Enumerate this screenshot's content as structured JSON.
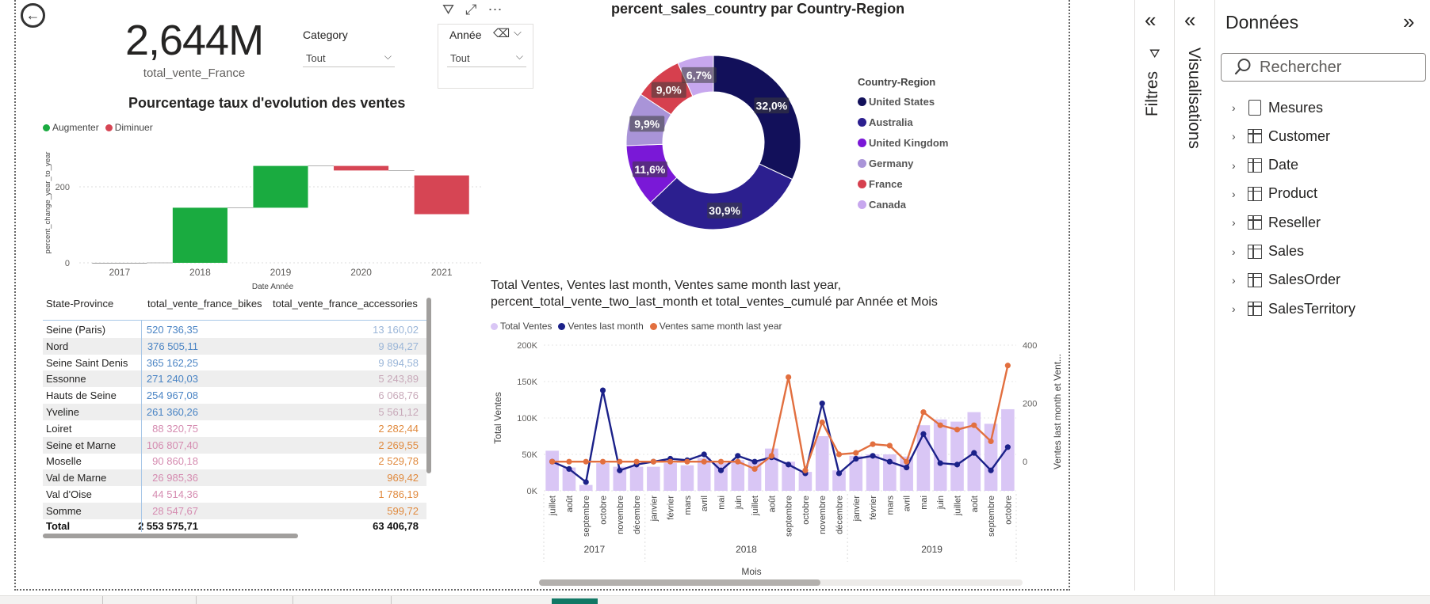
{
  "kpi": {
    "value": "2,644M",
    "label": "total_vente_France"
  },
  "slicers": {
    "category": {
      "title": "Category",
      "value": "Tout"
    },
    "year": {
      "title": "Année",
      "value": "Tout"
    }
  },
  "waterfall": {
    "title": "Pourcentage taux d'evolution des ventes",
    "legend": [
      {
        "label": "Augmenter",
        "color": "#1aab40"
      },
      {
        "label": "Diminuer",
        "color": "#d64554"
      }
    ],
    "ylabel": "percent_change_year_to_year",
    "xlabel": "Date Année",
    "y_ticks": [
      "200",
      "0"
    ],
    "ylim": [
      0,
      275
    ]
  },
  "table": {
    "headers": [
      "State-Province",
      "total_vente_france_bikes",
      "total_vente_france_accessories"
    ],
    "rows": [
      [
        "Seine (Paris)",
        "520 736,35",
        "13 160,02"
      ],
      [
        "Nord",
        "376 505,11",
        "9 894,27"
      ],
      [
        "Seine Saint Denis",
        "365 162,25",
        "9 894,58"
      ],
      [
        "Essonne",
        "271 240,03",
        "5 243,89"
      ],
      [
        "Hauts de Seine",
        "254 967,08",
        "6 068,76"
      ],
      [
        "Yveline",
        "261 360,26",
        "5 561,12"
      ],
      [
        "Loiret",
        "88 320,75",
        "2 282,44"
      ],
      [
        "Seine et Marne",
        "106 807,40",
        "2 269,55"
      ],
      [
        "Moselle",
        "90 860,18",
        "2 529,78"
      ],
      [
        "Val de Marne",
        "26 985,36",
        "969,42"
      ],
      [
        "Val d'Oise",
        "44 514,36",
        "1 786,19"
      ],
      [
        "Somme",
        "28 547,67",
        "599,72"
      ]
    ],
    "total": [
      "Total",
      "2 553 575,71",
      "63 406,78"
    ]
  },
  "donut": {
    "title": "percent_sales_country par Country-Region",
    "legend_title": "Country-Region"
  },
  "combo": {
    "title_line1": "Total Ventes, Ventes last month, Ventes same month last year,",
    "title_line2": "percent_total_vente_two_last_month et total_ventes_cumulé par Année et Mois",
    "legend": [
      {
        "label": "Total Ventes",
        "color": "#d9c6f5"
      },
      {
        "label": "Ventes last month",
        "color": "#1b2189"
      },
      {
        "label": "Ventes same month last year",
        "color": "#e26f3f"
      }
    ],
    "ylabel_left": "Total Ventes",
    "ylabel_right": "Ventes last month et Vent...",
    "xlabel": "Mois",
    "y_ticks_left": [
      "200K",
      "150K",
      "100K",
      "50K",
      "0K"
    ],
    "y_ticks_right": [
      "400",
      "200",
      "0"
    ]
  },
  "panes": {
    "filters_label": "Filtres",
    "visualisations_label": "Visualisations",
    "data_title": "Données",
    "search_placeholder": "Rechercher",
    "tree": [
      "Mesures",
      "Customer",
      "Date",
      "Product",
      "Reseller",
      "Sales",
      "SalesOrder",
      "SalesTerritory"
    ]
  },
  "chart_data": [
    {
      "type": "waterfall",
      "title": "Pourcentage taux d'evolution des ventes",
      "xlabel": "Date Année",
      "ylabel": "percent_change_year_to_year",
      "categories": [
        "2017",
        "2018",
        "2019",
        "2020",
        "2021"
      ],
      "start": [
        0,
        0,
        145,
        255,
        230
      ],
      "end": [
        0,
        145,
        255,
        243,
        128
      ],
      "direction": [
        "none",
        "up",
        "up",
        "down",
        "down"
      ],
      "ylim": [
        0,
        275
      ],
      "legend_position": "top-left"
    },
    {
      "type": "pie",
      "title": "percent_sales_country par Country-Region",
      "legend_title": "Country-Region",
      "categories": [
        "United States",
        "Australia",
        "United Kingdom",
        "Germany",
        "France",
        "Canada"
      ],
      "values": [
        32.0,
        30.9,
        11.6,
        9.9,
        9.0,
        6.7
      ],
      "labels": [
        "32,0%",
        "30,9%",
        "11,6%",
        "9,9%",
        "9,0%",
        "6,7%"
      ],
      "colors": [
        "#12105a",
        "#2c1f8f",
        "#7a18d7",
        "#a994d8",
        "#d6404e",
        "#c7a7ee"
      ],
      "legend_position": "right"
    },
    {
      "type": "bar+line",
      "x": [
        "juillet",
        "août",
        "septembre",
        "octobre",
        "novembre",
        "décembre",
        "janvier",
        "février",
        "mars",
        "avril",
        "mai",
        "juin",
        "juillet",
        "août",
        "septembre",
        "octobre",
        "novembre",
        "décembre",
        "janvier",
        "février",
        "mars",
        "avril",
        "mai",
        "juin",
        "juillet",
        "août",
        "septembre",
        "octobre"
      ],
      "x_groups": [
        {
          "label": "2017",
          "count": 6
        },
        {
          "label": "2018",
          "count": 12
        },
        {
          "label": "2019",
          "count": 10
        }
      ],
      "ylim_left": [
        0,
        200000
      ],
      "ylim_right": [
        -100,
        400
      ],
      "series": [
        {
          "name": "Total Ventes",
          "type": "bar",
          "axis": "left",
          "values": [
            55000,
            32000,
            8000,
            38000,
            33000,
            33000,
            33000,
            38000,
            35000,
            45000,
            38000,
            42000,
            40000,
            58000,
            40000,
            26000,
            75000,
            28000,
            48000,
            50000,
            50000,
            47000,
            90000,
            98000,
            95000,
            108000,
            92000,
            112000
          ]
        },
        {
          "name": "Ventes last month",
          "type": "line",
          "axis": "right",
          "values": [
            0,
            -25,
            -70,
            245,
            -30,
            -10,
            0,
            10,
            5,
            25,
            -30,
            20,
            0,
            15,
            -10,
            -40,
            200,
            -40,
            10,
            20,
            0,
            -20,
            95,
            -5,
            -10,
            30,
            -30,
            50
          ]
        },
        {
          "name": "Ventes same month last year",
          "type": "line",
          "axis": "right",
          "values": [
            0,
            0,
            0,
            0,
            0,
            0,
            0,
            0,
            0,
            0,
            0,
            0,
            -25,
            20,
            290,
            -30,
            135,
            25,
            30,
            60,
            55,
            0,
            170,
            125,
            110,
            125,
            70,
            330
          ]
        }
      ]
    }
  ]
}
